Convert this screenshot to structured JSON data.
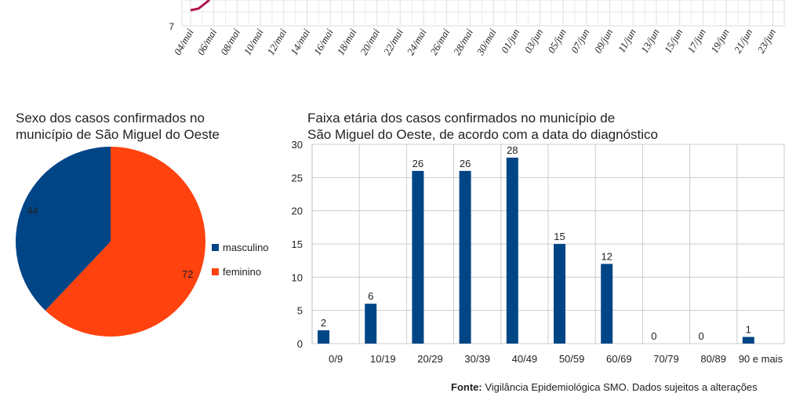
{
  "chart_data": [
    {
      "type": "line",
      "ylabel_visible_tick": "7",
      "x_ticks": [
        "04/mai",
        "06/mai",
        "08/mai",
        "10/mai",
        "12/mai",
        "14/mai",
        "16/mai",
        "18/mai",
        "20/mai",
        "22/mai",
        "24/mai",
        "26/mai",
        "28/mai",
        "30/mai",
        "01/jun",
        "03/jun",
        "05/jun",
        "07/jun",
        "09/jun",
        "11/jun",
        "13/jun",
        "15/jun",
        "17/jun",
        "19/jun",
        "21/jun",
        "23/jun"
      ],
      "series_color": "#b0124e"
    },
    {
      "type": "pie",
      "title_lines": [
        "Sexo dos casos confirmados no",
        "município de São Miguel do Oeste"
      ],
      "slices": [
        {
          "label": "masculino",
          "value": 44,
          "color": "#004586"
        },
        {
          "label": "feminino",
          "value": 72,
          "color": "#ff420e"
        }
      ],
      "legend": "right"
    },
    {
      "type": "bar",
      "title_lines": [
        "Faixa etária dos casos confirmados no município de",
        "São Miguel do Oeste, de acordo com a data do diagnóstico"
      ],
      "categories": [
        "0/9",
        "10/19",
        "20/29",
        "30/39",
        "40/49",
        "50/59",
        "60/69",
        "70/79",
        "80/89",
        "90 e mais"
      ],
      "values": [
        2,
        6,
        26,
        26,
        28,
        15,
        12,
        0,
        0,
        1
      ],
      "ylim": [
        0,
        30
      ],
      "yticks": [
        0,
        5,
        10,
        15,
        20,
        25,
        30
      ],
      "color": "#004586"
    }
  ],
  "source": {
    "label": "Fonte:",
    "text": " Vigilância Epidemiológica SMO. Dados sujeitos a alterações"
  }
}
